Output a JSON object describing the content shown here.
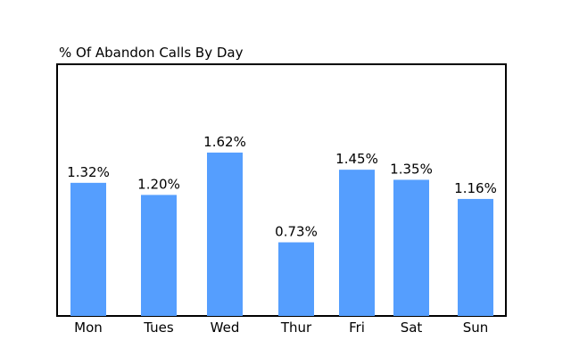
{
  "chart_data": {
    "type": "bar",
    "title": "% Of Abandon Calls By Day",
    "xlabel": "",
    "ylabel": "",
    "categories": [
      "Mon",
      "Tues",
      "Wed",
      "Thur",
      "Fri",
      "Sat",
      "Sun"
    ],
    "values": [
      1.32,
      1.2,
      1.62,
      0.73,
      1.45,
      1.35,
      1.16
    ],
    "data_labels": [
      "1.32%",
      "1.20%",
      "1.62%",
      "0.73%",
      "1.45%",
      "1.35%",
      "1.16%"
    ],
    "ylim": [
      0,
      2.0
    ],
    "grid": false,
    "legend": "none",
    "bar_color": "#559efe",
    "frame_color": "#000000"
  }
}
